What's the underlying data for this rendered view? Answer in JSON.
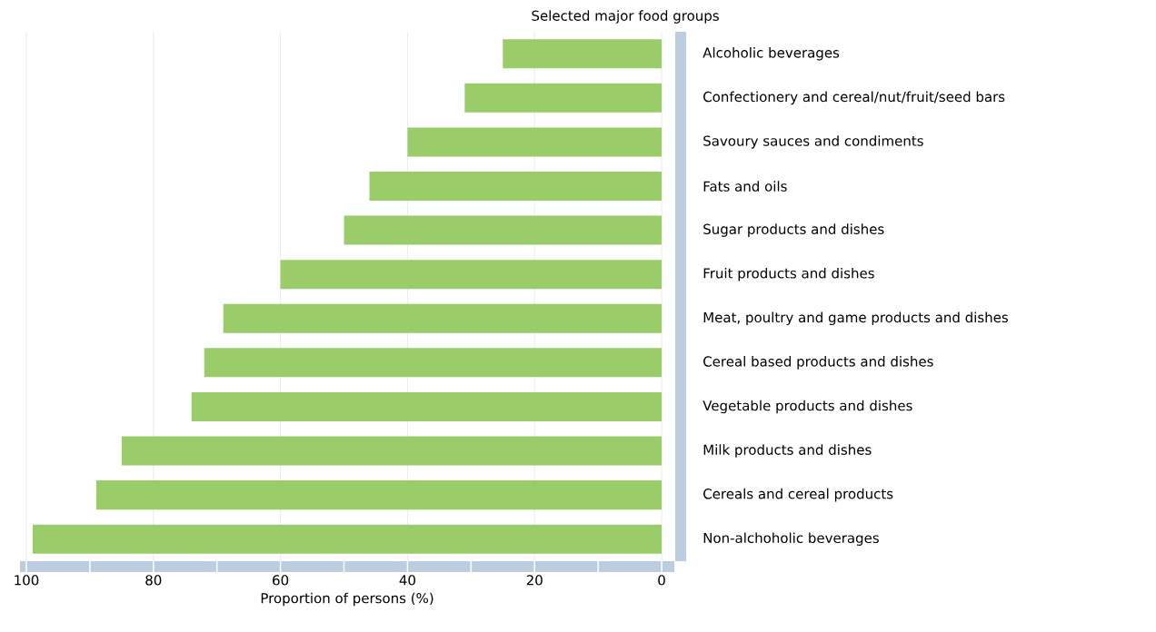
{
  "chart_data": {
    "type": "bar",
    "orientation": "horizontal",
    "title": "Selected major food groups",
    "xlabel": "Proportion of persons (%)",
    "categories": [
      "Alcoholic beverages",
      "Confectionery and cereal/nut/fruit/seed bars",
      "Savoury sauces and condiments",
      "Fats and oils",
      "Sugar products and dishes",
      "Fruit products and dishes",
      "Meat, poultry and game products and dishes",
      "Cereal based products and dishes",
      "Vegetable products and dishes",
      "Milk products and dishes",
      "Cereals and cereal products",
      "Non-alchoholic beverages"
    ],
    "values": [
      25,
      31,
      40,
      46,
      50,
      60,
      69,
      72,
      74,
      85,
      89,
      99
    ],
    "color": "#9acc6a",
    "xlim": [
      101,
      -2
    ],
    "xticks": [
      100,
      {
        "value": 90,
        "label": null
      },
      80,
      {
        "value": 70,
        "label": null
      },
      60,
      {
        "value": 50,
        "label": null
      },
      40,
      {
        "value": 30,
        "label": null
      },
      20,
      {
        "value": 10,
        "label": null
      },
      0
    ],
    "grid": "x"
  }
}
